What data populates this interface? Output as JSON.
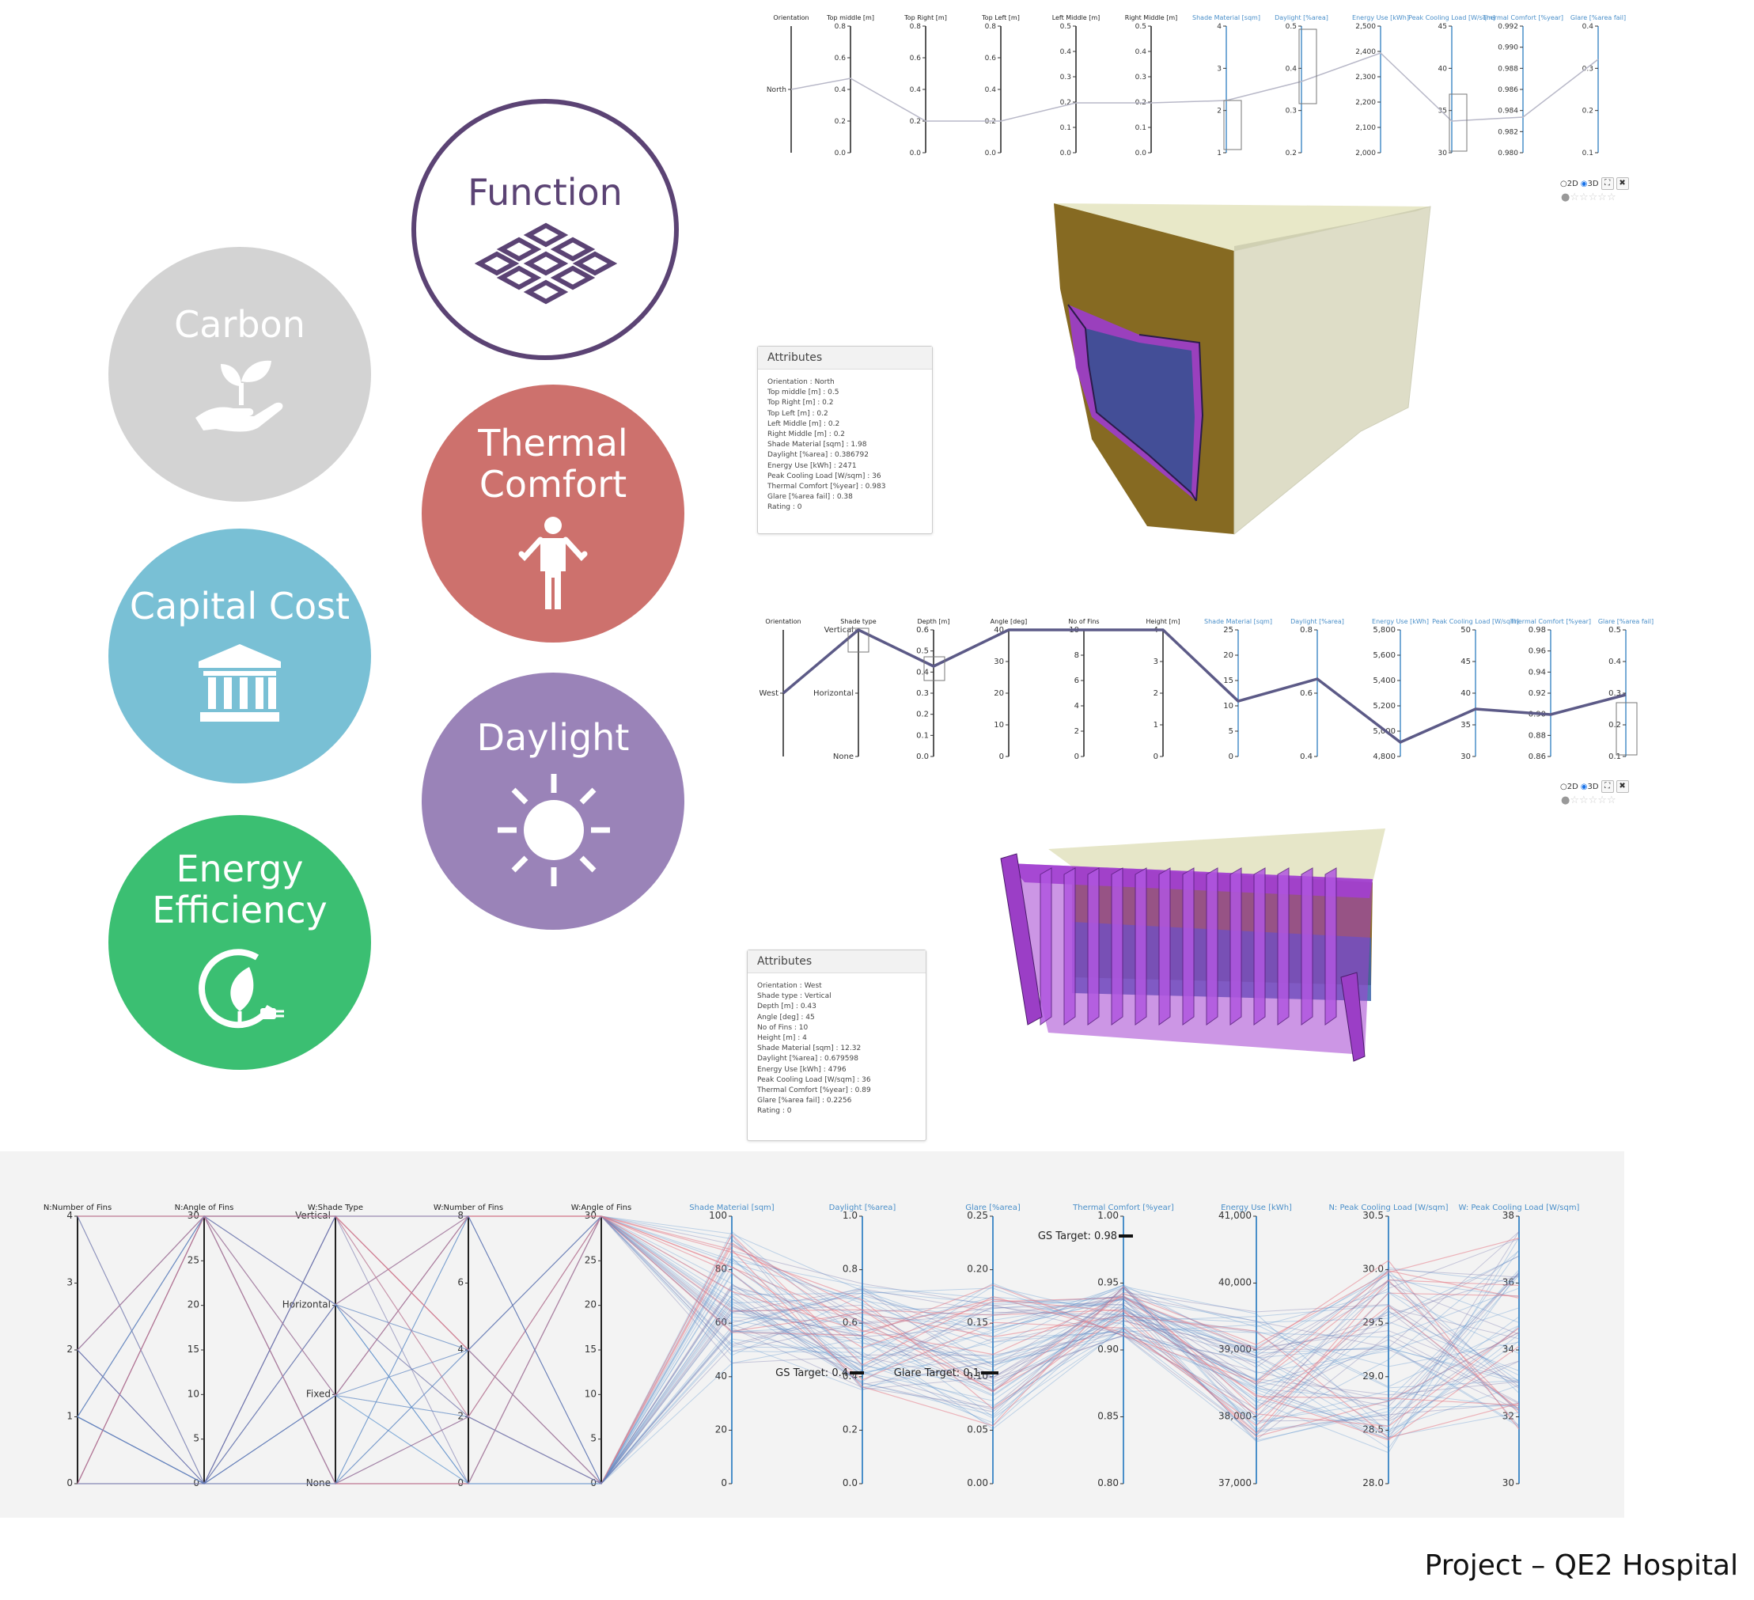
{
  "colors": {
    "carbon": "#d3d3d3",
    "function_ring": "#5b4374",
    "thermal": "#cd716d",
    "capital": "#79c0d5",
    "daylight": "#9a83b8",
    "energy": "#3bbf72",
    "axis_obj": "#4a8fc9",
    "line_main": "#5c5a87"
  },
  "circles": {
    "carbon": {
      "label": "Carbon",
      "icon": "plant-hand-icon"
    },
    "function": {
      "label": "Function",
      "icon": "grid-tiles-icon"
    },
    "thermal": {
      "label_line1": "Thermal",
      "label_line2": "Comfort",
      "icon": "person-icon"
    },
    "capital": {
      "label": "Capital Cost",
      "icon": "bank-icon"
    },
    "daylight": {
      "label": "Daylight",
      "icon": "sun-icon"
    },
    "energy": {
      "label_line1": "Energy",
      "label_line2": "Efficiency",
      "icon": "eco-plug-icon"
    }
  },
  "chart1": {
    "axes": [
      {
        "label": "Orientation",
        "ticks": [
          "North"
        ]
      },
      {
        "label": "Top middle [m]",
        "ticks": [
          "0.0",
          "0.2",
          "0.4",
          "0.6",
          "0.8"
        ]
      },
      {
        "label": "Top Right [m]",
        "ticks": [
          "0.0",
          "0.2",
          "0.4",
          "0.6",
          "0.8"
        ]
      },
      {
        "label": "Top Left [m]",
        "ticks": [
          "0.0",
          "0.2",
          "0.4",
          "0.6",
          "0.8"
        ]
      },
      {
        "label": "Left Middle [m]",
        "ticks": [
          "0.0",
          "0.1",
          "0.2",
          "0.3",
          "0.4",
          "0.5"
        ]
      },
      {
        "label": "Right Middle [m]",
        "ticks": [
          "0.0",
          "0.1",
          "0.2",
          "0.3",
          "0.4",
          "0.5"
        ]
      },
      {
        "label": "Shade Material [sqm]",
        "ticks": [
          "1",
          "2",
          "3",
          "4"
        ]
      },
      {
        "label": "Daylight [%area]",
        "ticks": [
          "0.2",
          "0.3",
          "0.4",
          "0.5"
        ]
      },
      {
        "label": "Energy Use [kWh]",
        "ticks": [
          "2,000",
          "2,100",
          "2,200",
          "2,300",
          "2,400",
          "2,500"
        ]
      },
      {
        "label": "Peak Cooling Load [W/sqm]",
        "ticks": [
          "30",
          "35",
          "40",
          "45"
        ]
      },
      {
        "label": "Thermal Comfort [%year]",
        "ticks": [
          "0.980",
          "0.982",
          "0.984",
          "0.986",
          "0.988",
          "0.990",
          "0.992"
        ]
      },
      {
        "label": "Glare [%area fail]",
        "ticks": [
          "0.1",
          "0.2",
          "0.3",
          "0.4"
        ]
      }
    ]
  },
  "chart2": {
    "axes": [
      {
        "label": "Orientation",
        "ticks": [
          "West"
        ]
      },
      {
        "label": "Shade type",
        "ticks": [
          "None",
          "Horizontal",
          "Vertical"
        ]
      },
      {
        "label": "Depth [m]",
        "ticks": [
          "0.0",
          "0.1",
          "0.2",
          "0.3",
          "0.4",
          "0.5",
          "0.6"
        ]
      },
      {
        "label": "Angle [deg]",
        "ticks": [
          "0",
          "10",
          "20",
          "30",
          "40"
        ]
      },
      {
        "label": "No of Fins",
        "ticks": [
          "0",
          "2",
          "4",
          "6",
          "8",
          "10"
        ]
      },
      {
        "label": "Height [m]",
        "ticks": [
          "0",
          "1",
          "2",
          "3",
          "4"
        ]
      },
      {
        "label": "Shade Material [sqm]",
        "ticks": [
          "0",
          "5",
          "10",
          "15",
          "20",
          "25"
        ]
      },
      {
        "label": "Daylight [%area]",
        "ticks": [
          "0.4",
          "0.6",
          "0.8"
        ]
      },
      {
        "label": "Energy Use [kWh]",
        "ticks": [
          "4,800",
          "5,000",
          "5,200",
          "5,400",
          "5,600",
          "5,800"
        ]
      },
      {
        "label": "Peak Cooling Load [W/sqm]",
        "ticks": [
          "30",
          "35",
          "40",
          "45",
          "50"
        ]
      },
      {
        "label": "Thermal Comfort [%year]",
        "ticks": [
          "0.86",
          "0.88",
          "0.90",
          "0.92",
          "0.94",
          "0.96",
          "0.98"
        ]
      },
      {
        "label": "Glare [%area fail]",
        "ticks": [
          "0.1",
          "0.2",
          "0.3",
          "0.4",
          "0.5"
        ]
      }
    ]
  },
  "chart3": {
    "axes": [
      {
        "label": "N:Number of Fins",
        "ticks": [
          "0",
          "1",
          "2",
          "3",
          "4"
        ]
      },
      {
        "label": "N:Angle of Fins",
        "ticks": [
          "0",
          "5",
          "10",
          "15",
          "20",
          "25",
          "30"
        ]
      },
      {
        "label": "W:Shade Type",
        "ticks": [
          "None",
          "Fixed",
          "Horizontal",
          "Vertical"
        ]
      },
      {
        "label": "W:Number of Fins",
        "ticks": [
          "0",
          "2",
          "4",
          "6",
          "8"
        ]
      },
      {
        "label": "W:Angle of Fins",
        "ticks": [
          "0",
          "5",
          "10",
          "15",
          "20",
          "25",
          "30"
        ]
      },
      {
        "label": "Shade Material [sqm]",
        "ticks": [
          "0",
          "20",
          "40",
          "60",
          "80",
          "100"
        ]
      },
      {
        "label": "Daylight [%area]",
        "ticks": [
          "0.0",
          "0.2",
          "0.4",
          "0.6",
          "0.8",
          "1.0"
        ]
      },
      {
        "label": "Glare [%area]",
        "ticks": [
          "0.00",
          "0.05",
          "0.10",
          "0.15",
          "0.20",
          "0.25"
        ]
      },
      {
        "label": "Thermal Comfort [%year]",
        "ticks": [
          "0.80",
          "0.85",
          "0.90",
          "0.95",
          "1.00"
        ]
      },
      {
        "label": "Energy Use [kWh]",
        "ticks": [
          "37,000",
          "38,000",
          "39,000",
          "40,000",
          "41,000"
        ]
      },
      {
        "label": "N: Peak Cooling Load [W/sqm]",
        "ticks": [
          "28.0",
          "28.5",
          "29.0",
          "29.5",
          "30.0",
          "30.5"
        ]
      },
      {
        "label": "W: Peak Cooling Load [W/sqm]",
        "ticks": [
          "30",
          "32",
          "34",
          "36",
          "38"
        ]
      }
    ],
    "targets": {
      "thermal": "GS Target: 0.98",
      "daylight": "GS Target: 0.4",
      "glare": "Glare Target: 0.1"
    }
  },
  "attributes1": {
    "title": "Attributes",
    "lines": [
      "Orientation : North",
      "Top middle [m] : 0.5",
      "Top Right [m] : 0.2",
      "Top Left [m] : 0.2",
      "Left Middle [m] : 0.2",
      "Right Middle [m] : 0.2",
      "Shade Material [sqm] : 1.98",
      "Daylight [%area] : 0.386792",
      "Energy Use [kWh] : 2471",
      "Peak Cooling Load [W/sqm] : 36",
      "Thermal Comfort [%year] : 0.983",
      "Glare [%area fail] : 0.38",
      "Rating : 0"
    ]
  },
  "attributes2": {
    "title": "Attributes",
    "lines": [
      "Orientation : West",
      "Shade type : Vertical",
      "Depth [m] : 0.43",
      "Angle [deg] : 45",
      "No of Fins : 10",
      "Height [m] : 4",
      "Shade Material [sqm] : 12.32",
      "Daylight [%area] : 0.679598",
      "Energy Use [kWh] : 4796",
      "Peak Cooling Load [W/sqm] : 36",
      "Thermal Comfort [%year] : 0.89",
      "Glare [%area fail] : 0.2256",
      "Rating : 0"
    ]
  },
  "viewer": {
    "opt2d": "2D",
    "opt3d": "3D",
    "expand": "⛶",
    "close": "✖",
    "stars": "☆☆☆☆☆"
  },
  "footer": "Project – QE2 Hospital"
}
